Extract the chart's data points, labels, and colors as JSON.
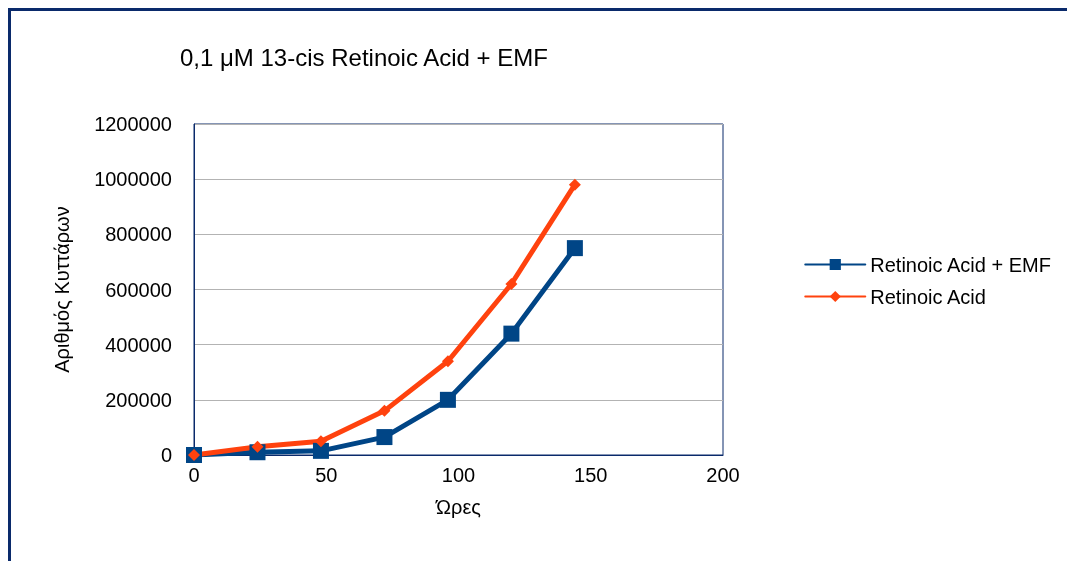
{
  "chart_data": {
    "type": "line",
    "title": "0,1 μM 13-cis Retinoic Acid + EMF",
    "xlabel": "Ώρες",
    "ylabel": "Αριθμός Κυττάρων",
    "x": [
      0,
      24,
      48,
      72,
      96,
      120,
      144
    ],
    "series": [
      {
        "name": "Retinoic Acid + EMF",
        "color": "#004586",
        "marker": "square",
        "values": [
          0,
          10000,
          15000,
          65000,
          200000,
          440000,
          750000
        ]
      },
      {
        "name": "Retinoic Acid",
        "color": "#ff420e",
        "marker": "diamond",
        "values": [
          0,
          30000,
          50000,
          160000,
          340000,
          620000,
          980000
        ]
      }
    ],
    "xlim": [
      0,
      200
    ],
    "xticks": [
      0,
      50,
      100,
      150,
      200
    ],
    "ylim": [
      0,
      1200000
    ],
    "yticks": [
      0,
      200000,
      400000,
      600000,
      800000,
      1000000,
      1200000
    ],
    "grid": "y",
    "legend": "right",
    "line_style": "solid"
  }
}
